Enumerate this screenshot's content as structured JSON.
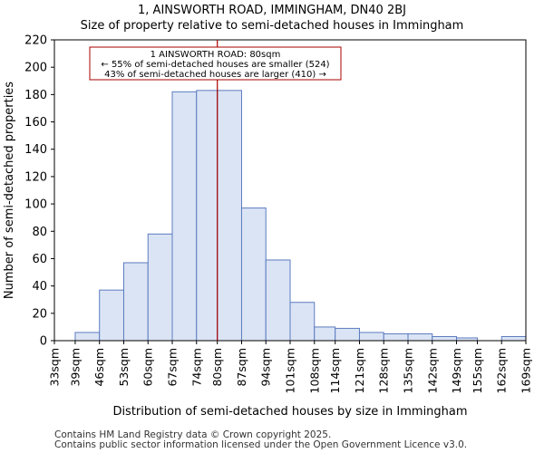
{
  "title_line1": "1, AINSWORTH ROAD, IMMINGHAM, DN40 2BJ",
  "title_line2": "Size of property relative to semi-detached houses in Immingham",
  "footer_line1": "Contains HM Land Registry data © Crown copyright 2025.",
  "footer_line2": "Contains public sector information licensed under the Open Government Licence v3.0.",
  "colors": {
    "bar_fill": "#dbe4f5",
    "bar_stroke": "#5b7bbf",
    "marker": "#aa0000"
  },
  "chart_data": {
    "type": "bar",
    "title": "Size of property relative to semi-detached houses in Immingham",
    "xlabel": "Distribution of semi-detached houses by size in Immingham",
    "ylabel": "Number of semi-detached properties",
    "ylim": [
      0,
      220
    ],
    "yticks": [
      0,
      20,
      40,
      60,
      80,
      100,
      120,
      140,
      160,
      180,
      200,
      220
    ],
    "bin_edges": [
      33,
      39,
      46,
      53,
      60,
      67,
      74,
      80,
      87,
      94,
      101,
      108,
      114,
      121,
      128,
      135,
      142,
      149,
      155,
      162,
      169
    ],
    "tick_labels": [
      "33sqm",
      "39sqm",
      "46sqm",
      "53sqm",
      "60sqm",
      "67sqm",
      "74sqm",
      "80sqm",
      "87sqm",
      "94sqm",
      "101sqm",
      "108sqm",
      "114sqm",
      "121sqm",
      "128sqm",
      "135sqm",
      "142sqm",
      "149sqm",
      "155sqm",
      "162sqm",
      "169sqm"
    ],
    "values": [
      0,
      6,
      37,
      57,
      78,
      182,
      183,
      183,
      97,
      59,
      28,
      10,
      9,
      6,
      5,
      5,
      3,
      2,
      0,
      3
    ],
    "marker_value": 80,
    "annotation": [
      "1 AINSWORTH ROAD: 80sqm",
      "← 55% of semi-detached houses are smaller (524)",
      "43% of semi-detached houses are larger (410) →"
    ]
  }
}
